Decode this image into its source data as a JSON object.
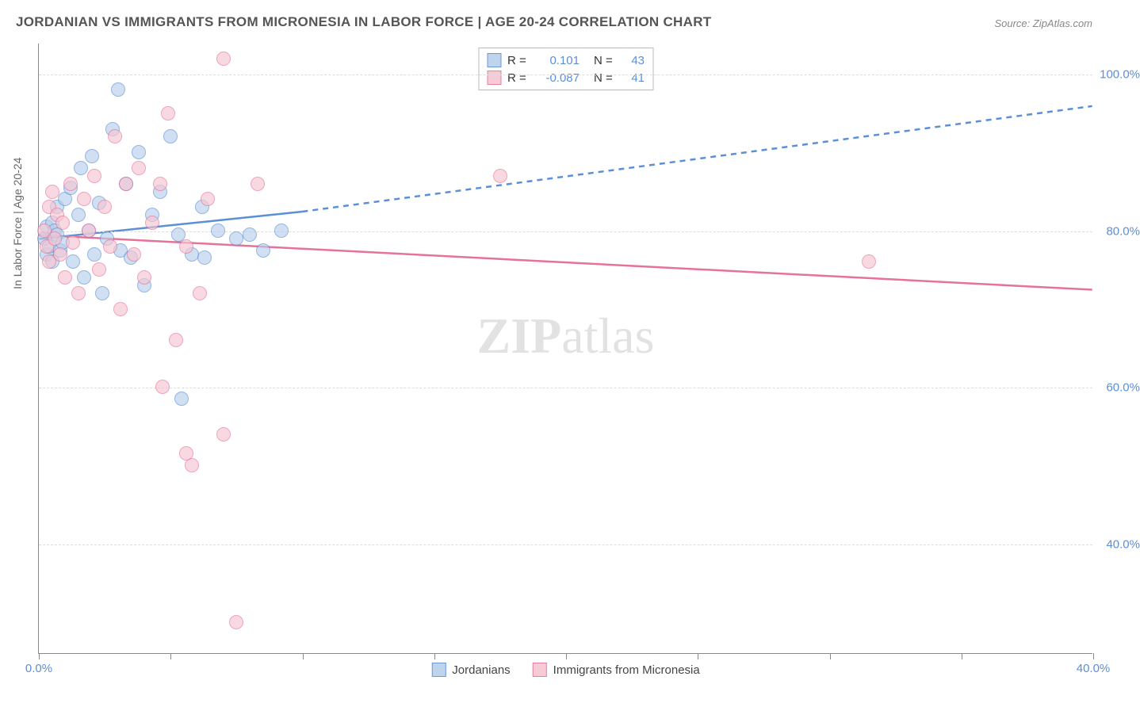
{
  "chart": {
    "type": "scatter",
    "title": "JORDANIAN VS IMMIGRANTS FROM MICRONESIA IN LABOR FORCE | AGE 20-24 CORRELATION CHART",
    "source": "Source: ZipAtlas.com",
    "y_axis_title": "In Labor Force | Age 20-24",
    "watermark_bold": "ZIP",
    "watermark_light": "atlas",
    "background_color": "#ffffff",
    "grid_color": "#dddddd",
    "axis_color": "#888888",
    "title_color": "#555555",
    "label_color": "#5b8fd6",
    "xlim": [
      0,
      40
    ],
    "ylim": [
      26,
      104
    ],
    "x_ticks": [
      0,
      5,
      10,
      15,
      20,
      25,
      30,
      35,
      40
    ],
    "x_tick_labels": {
      "0": "0.0%",
      "40": "40.0%"
    },
    "y_ticks": [
      40,
      60,
      80,
      100
    ],
    "y_tick_labels": {
      "40": "40.0%",
      "60": "60.0%",
      "80": "80.0%",
      "100": "100.0%"
    },
    "series": [
      {
        "name": "Jordanians",
        "fill": "#b7d0ec",
        "fill_opacity": 0.65,
        "stroke": "#5b8fd6",
        "stat_R": "0.101",
        "stat_N": "43",
        "trend": {
          "x0": 0,
          "y0": 79,
          "x_solid_end": 10,
          "y_solid_end": 82.5,
          "x1": 40,
          "y1": 96,
          "stroke_width": 2.5,
          "dash": "7,6"
        },
        "points": [
          [
            0.2,
            79
          ],
          [
            0.3,
            80.5
          ],
          [
            0.3,
            77
          ],
          [
            0.4,
            78
          ],
          [
            0.5,
            81
          ],
          [
            0.5,
            76
          ],
          [
            0.6,
            80
          ],
          [
            0.7,
            79.5
          ],
          [
            0.7,
            83
          ],
          [
            0.8,
            77.5
          ],
          [
            0.9,
            78.5
          ],
          [
            1.0,
            84
          ],
          [
            1.2,
            85.5
          ],
          [
            1.3,
            76
          ],
          [
            1.5,
            82
          ],
          [
            1.6,
            88
          ],
          [
            1.7,
            74
          ],
          [
            1.9,
            80
          ],
          [
            2.0,
            89.5
          ],
          [
            2.1,
            77
          ],
          [
            2.3,
            83.5
          ],
          [
            2.4,
            72
          ],
          [
            2.6,
            79
          ],
          [
            2.8,
            93
          ],
          [
            3.0,
            98
          ],
          [
            3.1,
            77.5
          ],
          [
            3.3,
            86
          ],
          [
            3.5,
            76.5
          ],
          [
            3.8,
            90
          ],
          [
            4.0,
            73
          ],
          [
            4.3,
            82
          ],
          [
            4.6,
            85
          ],
          [
            5.0,
            92
          ],
          [
            5.3,
            79.5
          ],
          [
            5.8,
            77
          ],
          [
            5.4,
            58.5
          ],
          [
            6.2,
            83
          ],
          [
            6.3,
            76.5
          ],
          [
            6.8,
            80
          ],
          [
            7.5,
            79
          ],
          [
            8.0,
            79.5
          ],
          [
            8.5,
            77.5
          ],
          [
            9.2,
            80
          ]
        ]
      },
      {
        "name": "Immigrants from Micronesia",
        "fill": "#f7c6d2",
        "fill_opacity": 0.65,
        "stroke": "#e57399",
        "stat_R": "-0.087",
        "stat_N": "41",
        "trend": {
          "x0": 0,
          "y0": 79.5,
          "x_solid_end": 40,
          "y_solid_end": 72.5,
          "x1": 40,
          "y1": 72.5,
          "stroke_width": 2.5,
          "dash": ""
        },
        "points": [
          [
            0.2,
            80
          ],
          [
            0.3,
            78
          ],
          [
            0.4,
            83
          ],
          [
            0.4,
            76
          ],
          [
            0.5,
            85
          ],
          [
            0.6,
            79
          ],
          [
            0.7,
            82
          ],
          [
            0.8,
            77
          ],
          [
            0.9,
            81
          ],
          [
            1.0,
            74
          ],
          [
            1.2,
            86
          ],
          [
            1.3,
            78.5
          ],
          [
            1.5,
            72
          ],
          [
            1.7,
            84
          ],
          [
            1.9,
            80
          ],
          [
            2.1,
            87
          ],
          [
            2.3,
            75
          ],
          [
            2.5,
            83
          ],
          [
            2.7,
            78
          ],
          [
            2.9,
            92
          ],
          [
            3.1,
            70
          ],
          [
            3.3,
            86
          ],
          [
            3.6,
            77
          ],
          [
            3.8,
            88
          ],
          [
            4.0,
            74
          ],
          [
            4.3,
            81
          ],
          [
            4.6,
            86
          ],
          [
            4.9,
            95
          ],
          [
            5.2,
            66
          ],
          [
            4.7,
            60
          ],
          [
            5.6,
            78
          ],
          [
            5.8,
            50
          ],
          [
            5.6,
            51.5
          ],
          [
            6.1,
            72
          ],
          [
            6.4,
            84
          ],
          [
            7.0,
            102
          ],
          [
            7.0,
            54
          ],
          [
            7.5,
            30
          ],
          [
            8.3,
            86
          ],
          [
            17.5,
            87
          ],
          [
            31.5,
            76
          ]
        ]
      }
    ],
    "stat_legend_labels": {
      "R": "R =",
      "N": "N ="
    },
    "bottom_legend": [
      "Jordanians",
      "Immigrants from Micronesia"
    ]
  }
}
